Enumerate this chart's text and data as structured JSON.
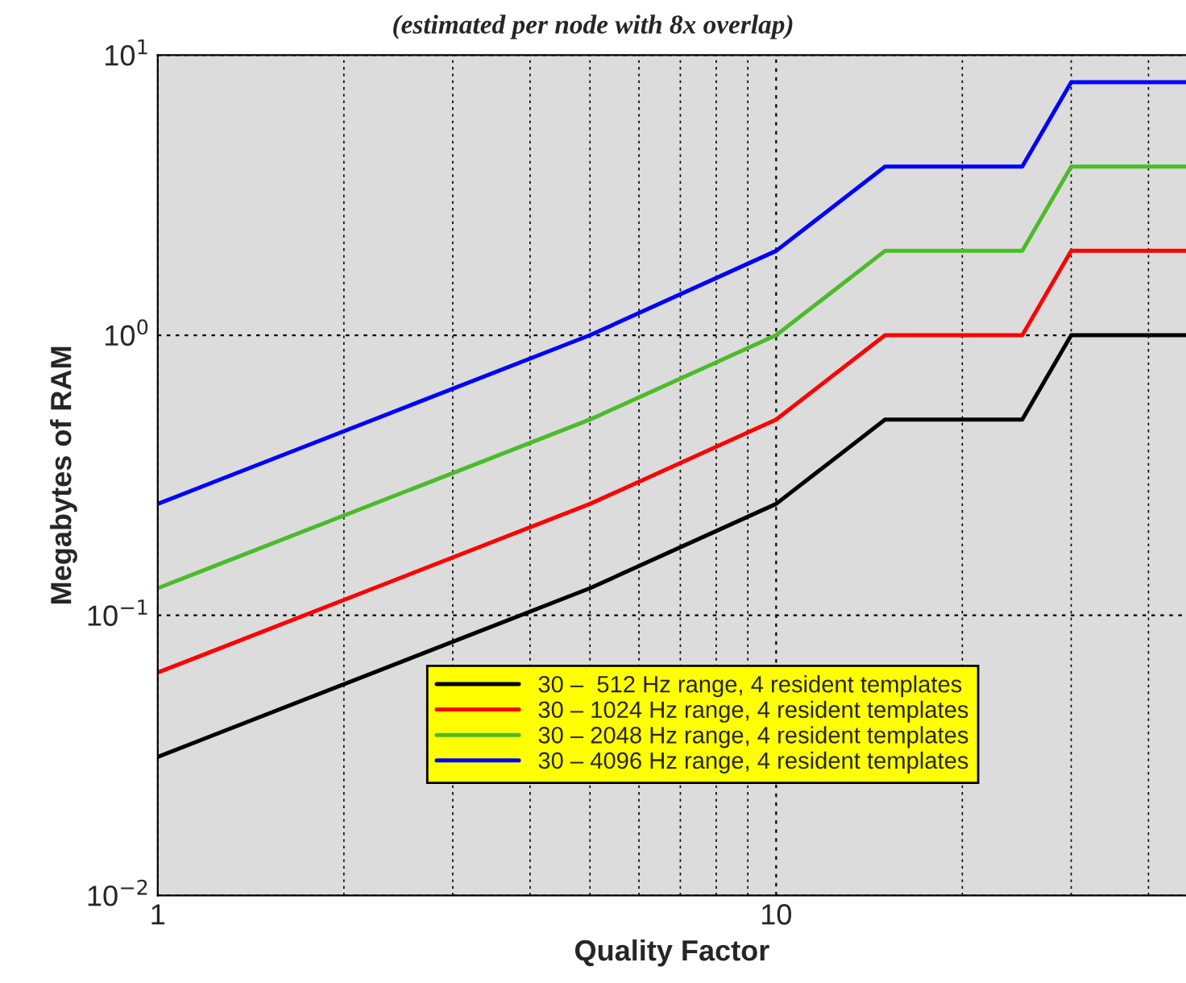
{
  "chart_data": {
    "type": "line",
    "subtitle": "(estimated per node with 8x overlap)",
    "xlabel": "Quality Factor",
    "ylabel": "Megabytes of RAM",
    "x": [
      1,
      5,
      10,
      15,
      25,
      30,
      46
    ],
    "series": [
      {
        "name": "30 –  512 Hz range, 4 resident templates",
        "color": "#000000",
        "values": [
          0.03125,
          0.125,
          0.25,
          0.5,
          0.5,
          1,
          1
        ]
      },
      {
        "name": "30 – 1024 Hz range, 4 resident templates",
        "color": "#ff0000",
        "values": [
          0.0625,
          0.25,
          0.5,
          1,
          1,
          2,
          2
        ]
      },
      {
        "name": "30 – 2048 Hz range, 4 resident templates",
        "color": "#4cbb2a",
        "values": [
          0.125,
          0.5,
          1,
          2,
          2,
          4,
          4
        ]
      },
      {
        "name": "30 – 4096 Hz range, 4 resident templates",
        "color": "#0000ff",
        "values": [
          0.25,
          1,
          2,
          4,
          4,
          8,
          8
        ]
      }
    ],
    "log": "xy",
    "xlim": [
      1,
      46
    ],
    "ylim": [
      0.01,
      10
    ],
    "xticks": [
      1,
      10
    ],
    "yticks": [
      {
        "value": 0.01,
        "label": "10$^{−2}$"
      },
      {
        "value": 0.1,
        "label": "10$^{−1}$"
      },
      {
        "value": 1,
        "label": "10$^{0}$"
      },
      {
        "value": 10,
        "label": "10$^{1}$"
      }
    ],
    "grid": true,
    "legend": "bottom",
    "marker": "none",
    "line_style": "solid"
  }
}
